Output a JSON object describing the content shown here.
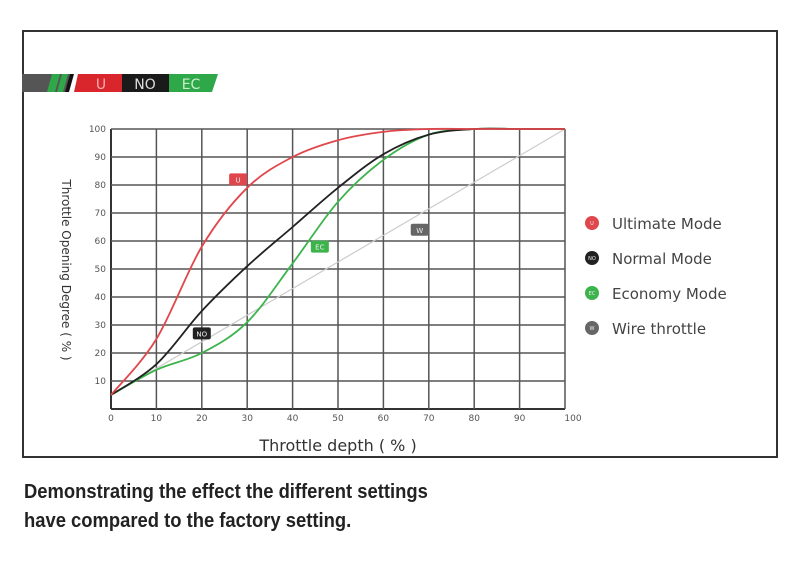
{
  "banner": {
    "labels": [
      "U",
      "NO",
      "EC"
    ],
    "colors": {
      "U": "#d8262c",
      "NO": "#1a1a1a",
      "EC": "#2fa84a"
    }
  },
  "caption": [
    "Demonstrating the effect the different settings",
    "have compared to the factory setting."
  ],
  "chart_data": {
    "type": "line",
    "xlabel": "Throttle depth ( % )",
    "ylabel": "Throttle Opening Degree ( % )",
    "xlim": [
      0,
      100
    ],
    "ylim": [
      0,
      100
    ],
    "xticks": [
      "0",
      "10",
      "20",
      "30",
      "40",
      "50",
      "60",
      "70",
      "80",
      "90",
      "100"
    ],
    "yticks": [
      "10",
      "20",
      "30",
      "40",
      "50",
      "60",
      "70",
      "80",
      "90",
      "100"
    ],
    "grid": true,
    "legend_placement": "right",
    "x": [
      0,
      10,
      20,
      30,
      40,
      50,
      60,
      70,
      80,
      90,
      100
    ],
    "series": [
      {
        "name": "Ultimate Mode",
        "tag": "U",
        "color": "#e0474c",
        "values": [
          5,
          25,
          58,
          79,
          90,
          96,
          99,
          100,
          100,
          100,
          100
        ],
        "tag_at": [
          28,
          82
        ]
      },
      {
        "name": "Normal Mode",
        "tag": "NO",
        "color": "#222222",
        "values": [
          5,
          16,
          35,
          51,
          65,
          79,
          91,
          98,
          100,
          100,
          100
        ],
        "tag_at": [
          20,
          27
        ]
      },
      {
        "name": "Economy Mode",
        "tag": "EC",
        "color": "#3cb44b",
        "values": [
          5,
          14,
          20,
          31,
          52,
          74,
          89,
          98,
          100,
          100,
          100
        ],
        "tag_at": [
          46,
          58
        ]
      },
      {
        "name": "Wire throttle",
        "tag": "W",
        "color": "#cccccc",
        "values": [
          5,
          14.5,
          24,
          33.5,
          43,
          52.5,
          62,
          71.5,
          81,
          90.5,
          100
        ],
        "tag_at": [
          68,
          64
        ]
      }
    ]
  }
}
